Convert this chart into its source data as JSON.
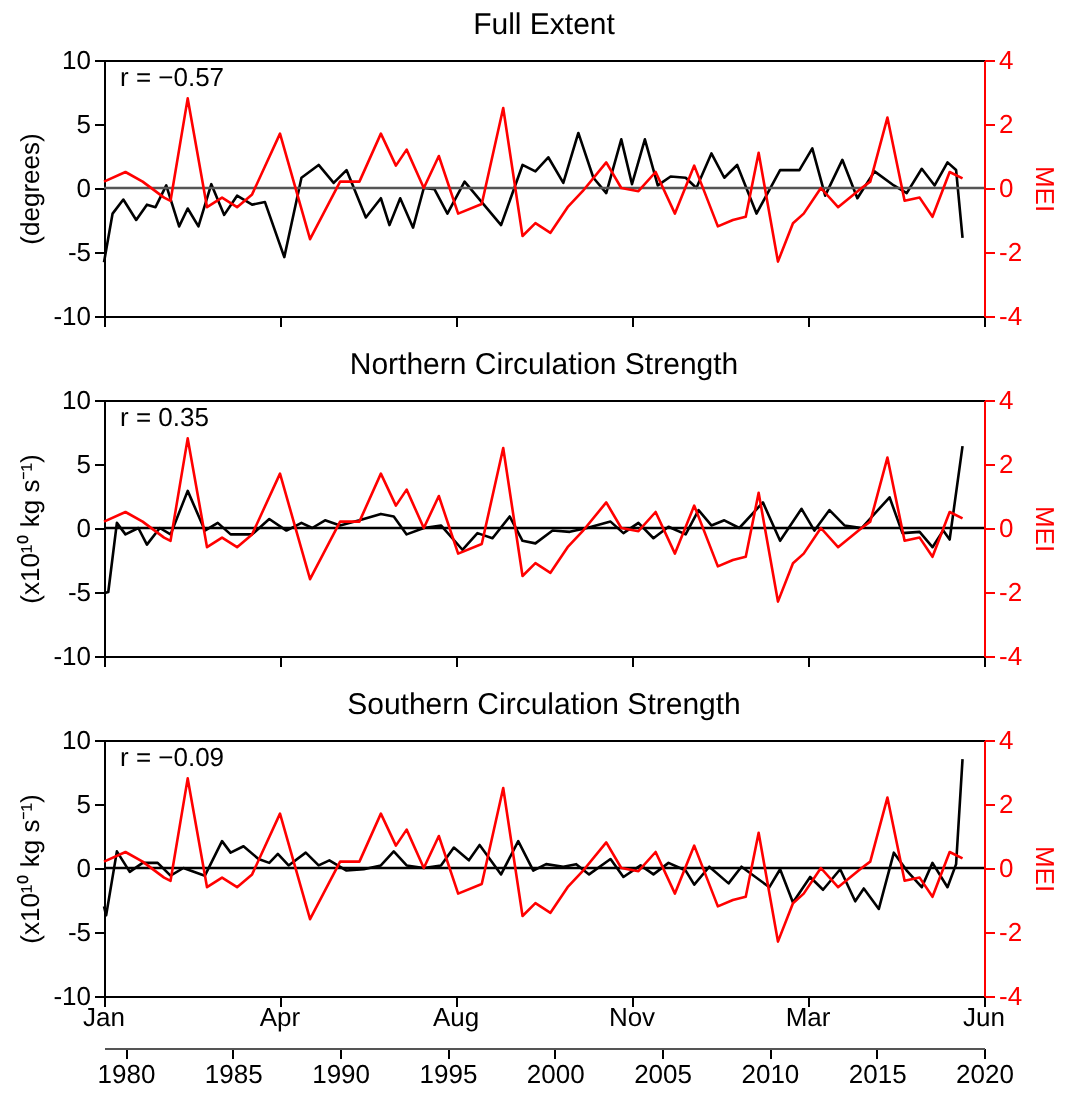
{
  "chart_data": [
    {
      "type": "line",
      "title": "Full Extent",
      "ylabel": "(degrees)",
      "y2label": "MEI",
      "annotations": [
        "r =  −0.57"
      ],
      "xlim": [
        1979,
        2020
      ],
      "xticks": [
        {
          "value": 1979,
          "label": null
        },
        {
          "value": 1987.2,
          "label": null
        },
        {
          "value": 1995.4,
          "label": null
        },
        {
          "value": 2003.6,
          "label": null
        },
        {
          "value": 2011.8,
          "label": null
        },
        {
          "value": 2020,
          "label": null
        }
      ],
      "tick_labels": "y",
      "ylim": [
        -10,
        10
      ],
      "yticks": [
        -10,
        -5,
        0,
        5,
        10
      ],
      "y2lim": [
        -4,
        4
      ],
      "y2ticks": [
        -4,
        -2,
        0,
        2,
        4
      ],
      "grid": false,
      "ref_lines": [
        {
          "axis": "y",
          "value": 0,
          "color": "#555555"
        }
      ],
      "series": [
        {
          "color": "#000000",
          "x": [
            1979.0,
            1979.4,
            1979.9,
            1980.5,
            1981.0,
            1981.4,
            1981.9,
            1982.5,
            1982.9,
            1983.4,
            1984.0,
            1984.6,
            1985.2,
            1985.9,
            1986.5,
            1987.4,
            1988.2,
            1989.0,
            1989.7,
            1990.3,
            1991.2,
            1991.9,
            1992.3,
            1992.8,
            1993.4,
            1993.9,
            1994.4,
            1995.0,
            1995.8,
            1996.6,
            1997.5,
            1998.5,
            1999.1,
            1999.7,
            2000.4,
            2001.1,
            2001.8,
            2002.4,
            2003.1,
            2003.6,
            2004.2,
            2004.8,
            2005.4,
            2006.1,
            2006.6,
            2007.3,
            2007.9,
            2008.5,
            2009.4,
            2010.5,
            2011.4,
            2012.0,
            2012.6,
            2013.4,
            2014.1,
            2014.9,
            2015.8,
            2016.4,
            2017.1,
            2017.7,
            2018.3,
            2018.7,
            2019.0
          ],
          "values": [
            -5.8,
            -2.0,
            -0.9,
            -2.5,
            -1.3,
            -1.5,
            0.2,
            -3.0,
            -1.6,
            -3.0,
            0.3,
            -2.1,
            -0.6,
            -1.3,
            -1.1,
            -5.4,
            0.8,
            1.8,
            0.4,
            1.4,
            -2.3,
            -0.8,
            -2.9,
            -0.8,
            -3.1,
            0,
            -0.1,
            -2.0,
            0.5,
            -1.1,
            -2.9,
            1.8,
            1.3,
            2.4,
            0.4,
            4.3,
            0.8,
            -0.4,
            3.8,
            0.3,
            3.8,
            0.2,
            0.9,
            0.8,
            0,
            2.7,
            0.8,
            1.8,
            -2.0,
            1.4,
            1.4,
            3.1,
            -0.6,
            2.2,
            -0.8,
            1.3,
            0.2,
            -0.4,
            1.5,
            0.2,
            2.0,
            1.4,
            -3.9
          ]
        },
        {
          "color": "#ff0000",
          "axis": "y2",
          "x": [
            1979.0,
            1980.0,
            1980.8,
            1981.8,
            1982.1,
            1982.9,
            1983.8,
            1984.5,
            1985.2,
            1985.9,
            1987.2,
            1988.6,
            1990.0,
            1990.9,
            1991.9,
            1992.6,
            1993.1,
            1993.9,
            1994.6,
            1995.5,
            1996.6,
            1997.6,
            1998.5,
            1999.1,
            1999.8,
            2000.6,
            2001.3,
            2002.4,
            2003.1,
            2003.9,
            2004.7,
            2005.6,
            2006.5,
            2007.6,
            2008.3,
            2008.9,
            2009.5,
            2010.4,
            2011.1,
            2011.6,
            2012.4,
            2013.2,
            2014.3,
            2014.7,
            2015.5,
            2016.3,
            2017.0,
            2017.6,
            2018.4,
            2019.0
          ],
          "values": [
            0.2,
            0.5,
            0.2,
            -0.3,
            -0.4,
            2.8,
            -0.6,
            -0.3,
            -0.6,
            -0.2,
            1.7,
            -1.6,
            0.2,
            0.2,
            1.7,
            0.7,
            1.2,
            0,
            1.0,
            -0.8,
            -0.5,
            2.5,
            -1.5,
            -1.1,
            -1.4,
            -0.6,
            -0.1,
            0.8,
            0,
            -0.1,
            0.5,
            -0.8,
            0.7,
            -1.2,
            -1.0,
            -0.9,
            1.1,
            -2.3,
            -1.1,
            -0.8,
            0,
            -0.6,
            0,
            0.2,
            2.2,
            -0.4,
            -0.3,
            -0.9,
            0.5,
            0.3
          ]
        }
      ]
    },
    {
      "type": "line",
      "title": "Northern Circulation Strength",
      "ylabel": "(x10¹⁰ kg s⁻¹)",
      "y2label": "MEI",
      "annotations": [
        "r =   0.35"
      ],
      "xlim": [
        1979,
        2020
      ],
      "xticks": [
        {
          "value": 1979,
          "label": null
        },
        {
          "value": 1987.2,
          "label": null
        },
        {
          "value": 1995.4,
          "label": null
        },
        {
          "value": 2003.6,
          "label": null
        },
        {
          "value": 2011.8,
          "label": null
        },
        {
          "value": 2020,
          "label": null
        }
      ],
      "tick_labels": "y",
      "ylim": [
        -10,
        10
      ],
      "yticks": [
        -10,
        -5,
        0,
        5,
        10
      ],
      "y2lim": [
        -4,
        4
      ],
      "y2ticks": [
        -4,
        -2,
        0,
        2,
        4
      ],
      "grid": false,
      "ref_lines": [
        {
          "axis": "y",
          "value": 0,
          "color": "#000000"
        }
      ],
      "series": [
        {
          "color": "#000000",
          "x": [
            1979.0,
            1979.2,
            1979.6,
            1980.0,
            1980.6,
            1981.0,
            1981.6,
            1982.1,
            1982.9,
            1983.7,
            1984.3,
            1984.9,
            1985.9,
            1986.7,
            1987.5,
            1988.2,
            1988.7,
            1989.3,
            1990.0,
            1990.9,
            1991.9,
            1992.5,
            1993.1,
            1993.9,
            1994.7,
            1995.7,
            1996.4,
            1997.1,
            1997.9,
            1998.5,
            1999.1,
            1999.9,
            2000.7,
            2001.5,
            2002.6,
            2003.2,
            2003.9,
            2004.6,
            2005.3,
            2006.1,
            2006.7,
            2007.3,
            2007.9,
            2008.6,
            2009.7,
            2010.5,
            2011.5,
            2012.1,
            2012.8,
            2013.5,
            2014.3,
            2015.6,
            2016.2,
            2017.0,
            2017.6,
            2018.1,
            2018.4,
            2019.0
          ],
          "values": [
            -5.1,
            -5.0,
            0.4,
            -0.5,
            0,
            -1.3,
            0,
            -0.5,
            2.9,
            -0.2,
            0.4,
            -0.5,
            -0.5,
            0.7,
            -0.2,
            0.4,
            0,
            0.6,
            0.2,
            0.6,
            1.1,
            0.9,
            -0.5,
            0,
            0.2,
            -1.7,
            -0.4,
            -0.8,
            0.9,
            -1.0,
            -1.2,
            -0.2,
            -0.3,
            0,
            0.5,
            -0.4,
            0.4,
            -0.8,
            0.1,
            -0.5,
            1.4,
            0.2,
            0.6,
            0,
            2.0,
            -1.0,
            1.5,
            -0.2,
            1.4,
            0.2,
            0,
            2.4,
            -0.4,
            -0.3,
            -1.5,
            -0.2,
            -0.9,
            6.4
          ]
        },
        {
          "color": "#ff0000",
          "axis": "y2",
          "x": [
            1979.0,
            1980.0,
            1980.8,
            1981.8,
            1982.1,
            1982.9,
            1983.8,
            1984.5,
            1985.2,
            1985.9,
            1987.2,
            1988.6,
            1990.0,
            1990.9,
            1991.9,
            1992.6,
            1993.1,
            1993.9,
            1994.6,
            1995.5,
            1996.6,
            1997.6,
            1998.5,
            1999.1,
            1999.8,
            2000.6,
            2001.3,
            2002.4,
            2003.1,
            2003.9,
            2004.7,
            2005.6,
            2006.5,
            2007.6,
            2008.3,
            2008.9,
            2009.5,
            2010.4,
            2011.1,
            2011.6,
            2012.4,
            2013.2,
            2014.3,
            2014.7,
            2015.5,
            2016.3,
            2017.0,
            2017.6,
            2018.4,
            2019.0
          ],
          "values": [
            0.2,
            0.5,
            0.2,
            -0.3,
            -0.4,
            2.8,
            -0.6,
            -0.3,
            -0.6,
            -0.2,
            1.7,
            -1.6,
            0.2,
            0.2,
            1.7,
            0.7,
            1.2,
            0,
            1.0,
            -0.8,
            -0.5,
            2.5,
            -1.5,
            -1.1,
            -1.4,
            -0.6,
            -0.1,
            0.8,
            0,
            -0.1,
            0.5,
            -0.8,
            0.7,
            -1.2,
            -1.0,
            -0.9,
            1.1,
            -2.3,
            -1.1,
            -0.8,
            0,
            -0.6,
            0,
            0.2,
            2.2,
            -0.4,
            -0.3,
            -0.9,
            0.5,
            0.3
          ]
        }
      ]
    },
    {
      "type": "line",
      "title": "Southern Circulation Strength",
      "ylabel": "(x10¹⁰ kg s⁻¹)",
      "y2label": "MEI",
      "annotations": [
        "r =  −0.09",
        "Jan",
        "Apr",
        "Aug",
        "Nov",
        "Mar",
        "Jun"
      ],
      "xlim": [
        1979,
        2020
      ],
      "xticks": [
        1980,
        1985,
        1990,
        1995,
        2000,
        2005,
        2010,
        2015,
        2020
      ],
      "ylim": [
        -10,
        10
      ],
      "yticks": [
        -10,
        -5,
        0,
        5,
        10
      ],
      "y2lim": [
        -4,
        4
      ],
      "y2ticks": [
        -4,
        -2,
        0,
        2,
        4
      ],
      "grid": false,
      "ref_lines": [
        {
          "axis": "y",
          "value": 0,
          "color": "#000000"
        }
      ],
      "series": [
        {
          "color": "#000000",
          "x": [
            1979.0,
            1979.1,
            1979.6,
            1980.2,
            1980.8,
            1981.5,
            1982.1,
            1982.7,
            1983.7,
            1984.5,
            1984.9,
            1985.5,
            1986.2,
            1986.7,
            1987.1,
            1987.6,
            1988.4,
            1989.0,
            1989.5,
            1990.3,
            1991.1,
            1991.9,
            1992.5,
            1993.1,
            1993.9,
            1994.7,
            1995.3,
            1996.0,
            1996.5,
            1997.5,
            1998.3,
            1999.0,
            1999.6,
            2000.4,
            2001.0,
            2001.6,
            2002.6,
            2003.2,
            2004.0,
            2004.6,
            2005.3,
            2006.1,
            2006.5,
            2007.2,
            2008.1,
            2008.7,
            2010.0,
            2010.5,
            2011.1,
            2011.9,
            2012.5,
            2013.3,
            2014.0,
            2014.4,
            2015.1,
            2015.8,
            2016.4,
            2017.1,
            2017.6,
            2018.3,
            2018.7,
            2019.0
          ],
          "values": [
            -3.0,
            -3.7,
            1.3,
            -0.3,
            0.4,
            0.4,
            -0.6,
            0,
            -0.6,
            2.1,
            1.2,
            1.7,
            0.7,
            0.4,
            1.1,
            0.2,
            1.2,
            0.2,
            0.6,
            -0.2,
            -0.1,
            0.2,
            1.3,
            0.2,
            0,
            0.2,
            1.6,
            0.6,
            1.8,
            -0.5,
            2.1,
            -0.2,
            0.3,
            0.1,
            0.3,
            -0.5,
            0.7,
            -0.7,
            0.2,
            -0.5,
            0.4,
            -0.2,
            -1.3,
            0.1,
            -1.2,
            0.1,
            -1.5,
            -0.1,
            -2.7,
            -0.7,
            -1.7,
            -0.1,
            -2.6,
            -1.6,
            -3.2,
            1.2,
            -0.2,
            -1.5,
            0.4,
            -1.5,
            0.3,
            8.5
          ]
        },
        {
          "color": "#ff0000",
          "axis": "y2",
          "x": [
            1979.0,
            1980.0,
            1980.8,
            1981.8,
            1982.1,
            1982.9,
            1983.8,
            1984.5,
            1985.2,
            1985.9,
            1987.2,
            1988.6,
            1990.0,
            1990.9,
            1991.9,
            1992.6,
            1993.1,
            1993.9,
            1994.6,
            1995.5,
            1996.6,
            1997.6,
            1998.5,
            1999.1,
            1999.8,
            2000.6,
            2001.3,
            2002.4,
            2003.1,
            2003.9,
            2004.7,
            2005.6,
            2006.5,
            2007.6,
            2008.3,
            2008.9,
            2009.5,
            2010.4,
            2011.1,
            2011.6,
            2012.4,
            2013.2,
            2014.3,
            2014.7,
            2015.5,
            2016.3,
            2017.0,
            2017.6,
            2018.4,
            2019.0
          ],
          "values": [
            0.2,
            0.5,
            0.2,
            -0.3,
            -0.4,
            2.8,
            -0.6,
            -0.3,
            -0.6,
            -0.2,
            1.7,
            -1.6,
            0.2,
            0.2,
            1.7,
            0.7,
            1.2,
            0,
            1.0,
            -0.8,
            -0.5,
            2.5,
            -1.5,
            -1.1,
            -1.4,
            -0.6,
            -0.1,
            0.8,
            0,
            -0.1,
            0.5,
            -0.8,
            0.7,
            -1.2,
            -1.0,
            -0.9,
            1.1,
            -2.3,
            -1.1,
            -0.8,
            0,
            -0.6,
            0,
            0.2,
            2.2,
            -0.4,
            -0.3,
            -0.9,
            0.5,
            0.3
          ]
        }
      ]
    }
  ]
}
